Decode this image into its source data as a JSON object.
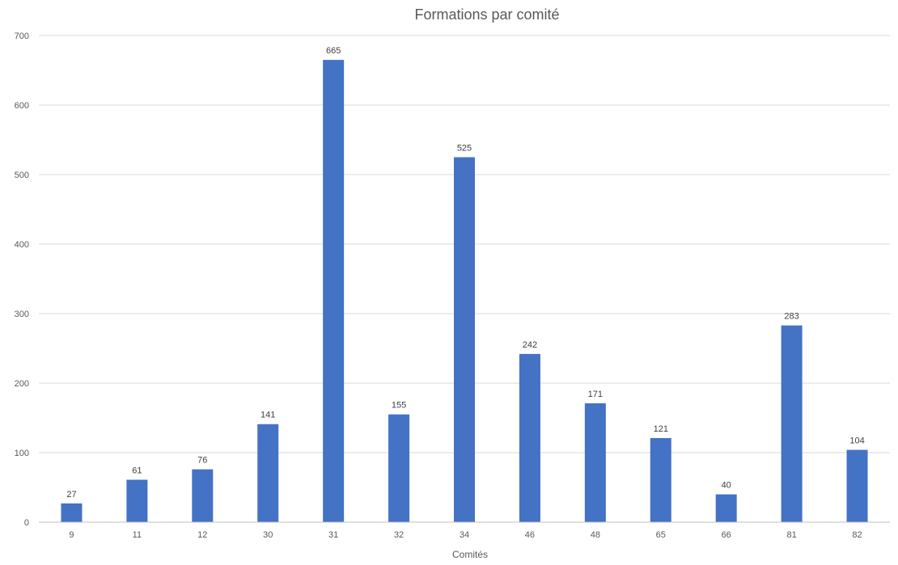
{
  "chart_data": {
    "type": "bar",
    "title": "Formations par comité",
    "xlabel": "Comités",
    "ylabel": "",
    "categories": [
      "9",
      "11",
      "12",
      "30",
      "31",
      "32",
      "34",
      "46",
      "48",
      "65",
      "66",
      "81",
      "82"
    ],
    "values": [
      27,
      61,
      76,
      141,
      665,
      155,
      525,
      242,
      171,
      121,
      40,
      283,
      104
    ],
    "ylim": [
      0,
      700
    ],
    "yticks": [
      "0",
      "100",
      "200",
      "300",
      "400",
      "500",
      "600",
      "700"
    ],
    "grid": true,
    "legend": "none",
    "data_labels": true,
    "bar_color": "#4472c4"
  }
}
